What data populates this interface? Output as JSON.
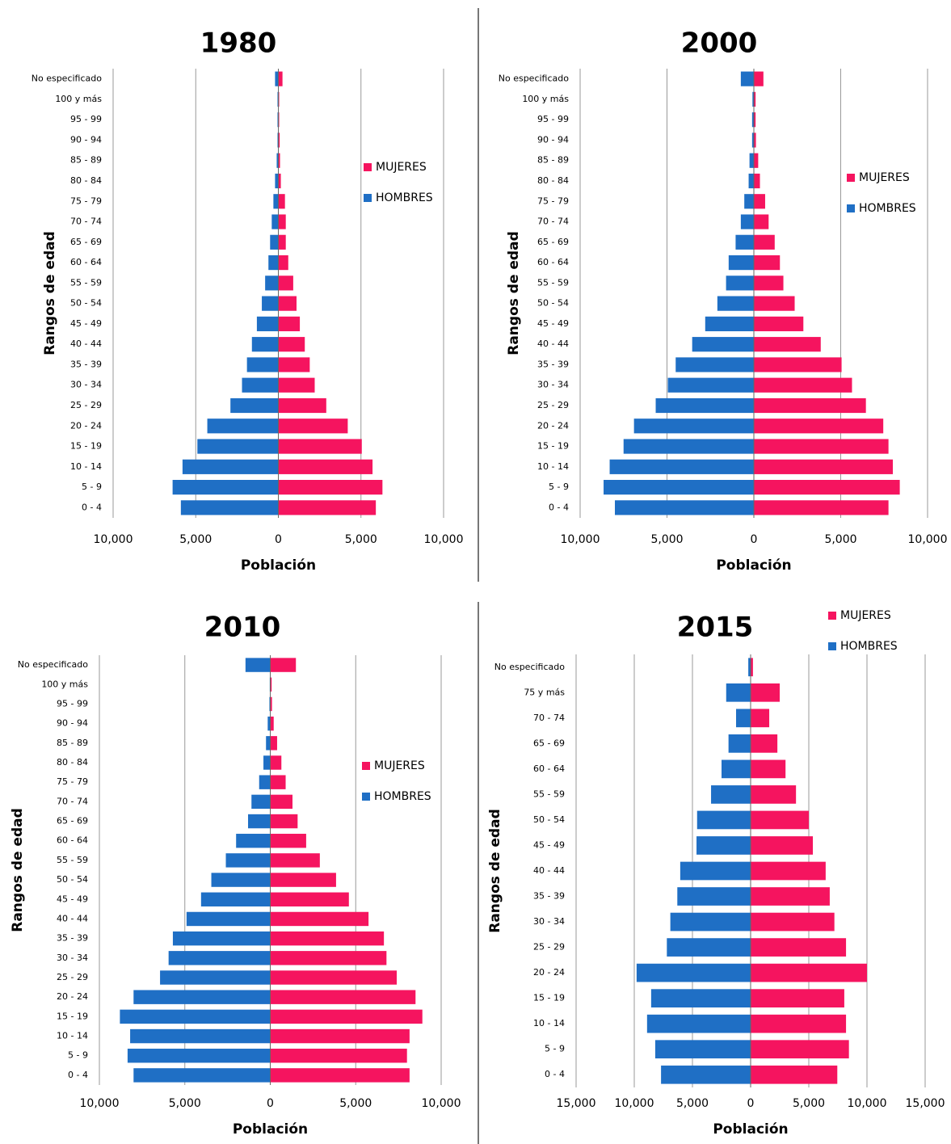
{
  "chart_data": [
    {
      "type": "bar",
      "title": "1980",
      "xlabel": "Población",
      "ylabel": "Rangos de edad",
      "categories": [
        "0 - 4",
        "5 - 9",
        "10 - 14",
        "15 - 19",
        "20 - 24",
        "25 - 29",
        "30 - 34",
        "35 - 39",
        "40 - 44",
        "45 - 49",
        "50 - 54",
        "55 - 59",
        "60 - 64",
        "65 - 69",
        "70 - 74",
        "75 - 79",
        "80 - 84",
        "85 - 89",
        "90 - 94",
        "95 - 99",
        "100 y más",
        "No especificado"
      ],
      "series": [
        {
          "name": "MUJERES",
          "color": "#f5145f",
          "values": [
            5900,
            6300,
            5700,
            5050,
            4200,
            2900,
            2200,
            1900,
            1600,
            1300,
            1100,
            900,
            600,
            450,
            450,
            400,
            150,
            100,
            80,
            50,
            50,
            250
          ]
        },
        {
          "name": "HOMBRES",
          "color": "#1f6fc5",
          "values": [
            -5900,
            -6400,
            -5800,
            -4900,
            -4300,
            -2900,
            -2200,
            -1900,
            -1600,
            -1300,
            -1000,
            -800,
            -600,
            -500,
            -400,
            -300,
            -200,
            -100,
            -50,
            -50,
            -50,
            -200
          ]
        }
      ],
      "xlim": [
        -10000,
        10000
      ],
      "xticks": [
        {
          "value": -10000,
          "label": "10,000"
        },
        {
          "value": -5000,
          "label": "5,000"
        },
        0,
        {
          "value": 5000,
          "label": "5,000"
        },
        {
          "value": 10000,
          "label": "10,000"
        }
      ],
      "grid": true
    },
    {
      "type": "bar",
      "title": "2000",
      "xlabel": "Población",
      "ylabel": "Rangos de edad",
      "categories": [
        "0 - 4",
        "5 - 9",
        "10 - 14",
        "15 - 19",
        "20 - 24",
        "25 - 29",
        "30 - 34",
        "35 - 39",
        "40 - 44",
        "45 - 49",
        "50 - 54",
        "55 - 59",
        "60 - 64",
        "65 - 69",
        "70 - 74",
        "75 - 79",
        "80 - 84",
        "85 - 89",
        "90 - 94",
        "95 - 99",
        "100 y más",
        "No especificado"
      ],
      "series": [
        {
          "name": "MUJERES",
          "color": "#f5145f",
          "values": [
            7750,
            8400,
            8000,
            7750,
            7450,
            6450,
            5650,
            5050,
            3850,
            2850,
            2350,
            1700,
            1500,
            1200,
            850,
            650,
            350,
            250,
            120,
            100,
            100,
            550
          ]
        },
        {
          "name": "HOMBRES",
          "color": "#1f6fc5",
          "values": [
            -8000,
            -8650,
            -8300,
            -7500,
            -6900,
            -5650,
            -4950,
            -4500,
            -3550,
            -2800,
            -2100,
            -1600,
            -1450,
            -1050,
            -750,
            -550,
            -300,
            -250,
            -100,
            -100,
            -80,
            -750
          ]
        }
      ],
      "xlim": [
        -10000,
        10000
      ],
      "xticks": [
        {
          "value": -10000,
          "label": "10,000"
        },
        {
          "value": -5000,
          "label": "5,000"
        },
        0,
        {
          "value": 5000,
          "label": "5,000"
        },
        {
          "value": 10000,
          "label": "10,000"
        }
      ],
      "grid": true
    },
    {
      "type": "bar",
      "title": "2010",
      "xlabel": "Población",
      "ylabel": "Rangos de edad",
      "categories": [
        "0 - 4",
        "5 - 9",
        "10 - 14",
        "15 - 19",
        "20 - 24",
        "25 - 29",
        "30 - 34",
        "35 - 39",
        "40 - 44",
        "45 - 49",
        "50 - 54",
        "55 - 59",
        "60 - 64",
        "65 - 69",
        "70 - 74",
        "75 - 79",
        "80 - 84",
        "85 - 89",
        "90 - 94",
        "95 - 99",
        "100 y más",
        "No especificado"
      ],
      "series": [
        {
          "name": "MUJERES",
          "color": "#f5145f",
          "values": [
            8150,
            8000,
            8150,
            8900,
            8500,
            7400,
            6800,
            6650,
            5750,
            4600,
            3850,
            2900,
            2100,
            1600,
            1300,
            900,
            650,
            400,
            200,
            100,
            80,
            1500
          ]
        },
        {
          "name": "HOMBRES",
          "color": "#1f6fc5",
          "values": [
            -8000,
            -8350,
            -8200,
            -8800,
            -8000,
            -6450,
            -5950,
            -5700,
            -4900,
            -4050,
            -3450,
            -2600,
            -2000,
            -1300,
            -1100,
            -650,
            -400,
            -250,
            -150,
            -50,
            -30,
            -1450
          ]
        }
      ],
      "xlim": [
        -10000,
        10000
      ],
      "xticks": [
        {
          "value": -10000,
          "label": "10,000"
        },
        {
          "value": -5000,
          "label": "5,000"
        },
        0,
        {
          "value": 5000,
          "label": "5,000"
        },
        {
          "value": 10000,
          "label": "10,000"
        }
      ],
      "grid": true
    },
    {
      "type": "bar",
      "title": "2015",
      "xlabel": "Población",
      "ylabel": "Rangos de edad",
      "categories": [
        "0 - 4",
        "5 - 9",
        "10 - 14",
        "15 - 19",
        "20 - 24",
        "25 - 29",
        "30 - 34",
        "35 - 39",
        "40 - 44",
        "45 - 49",
        "50 - 54",
        "55 - 59",
        "60 - 64",
        "65 - 69",
        "70 - 74",
        "75 y más",
        "No especificado"
      ],
      "series": [
        {
          "name": "MUJERES",
          "color": "#f5145f",
          "values": [
            7450,
            8450,
            8200,
            8050,
            10000,
            8200,
            7200,
            6800,
            6450,
            5350,
            5000,
            3900,
            3000,
            2300,
            1600,
            2500,
            200
          ]
        },
        {
          "name": "HOMBRES",
          "color": "#1f6fc5",
          "values": [
            -7700,
            -8200,
            -8900,
            -8550,
            -9800,
            -7200,
            -6900,
            -6300,
            -6050,
            -4650,
            -4600,
            -3400,
            -2500,
            -1900,
            -1250,
            -2100,
            -200
          ]
        }
      ],
      "xlim": [
        -15000,
        15000
      ],
      "xticks": [
        {
          "value": -15000,
          "label": "15,000"
        },
        {
          "value": -10000,
          "label": "10,000"
        },
        {
          "value": -5000,
          "label": "5,000"
        },
        0,
        {
          "value": 5000,
          "label": "5,000"
        },
        {
          "value": 10000,
          "label": "10,000"
        },
        {
          "value": 15000,
          "label": "15,000"
        }
      ],
      "grid": true
    }
  ]
}
